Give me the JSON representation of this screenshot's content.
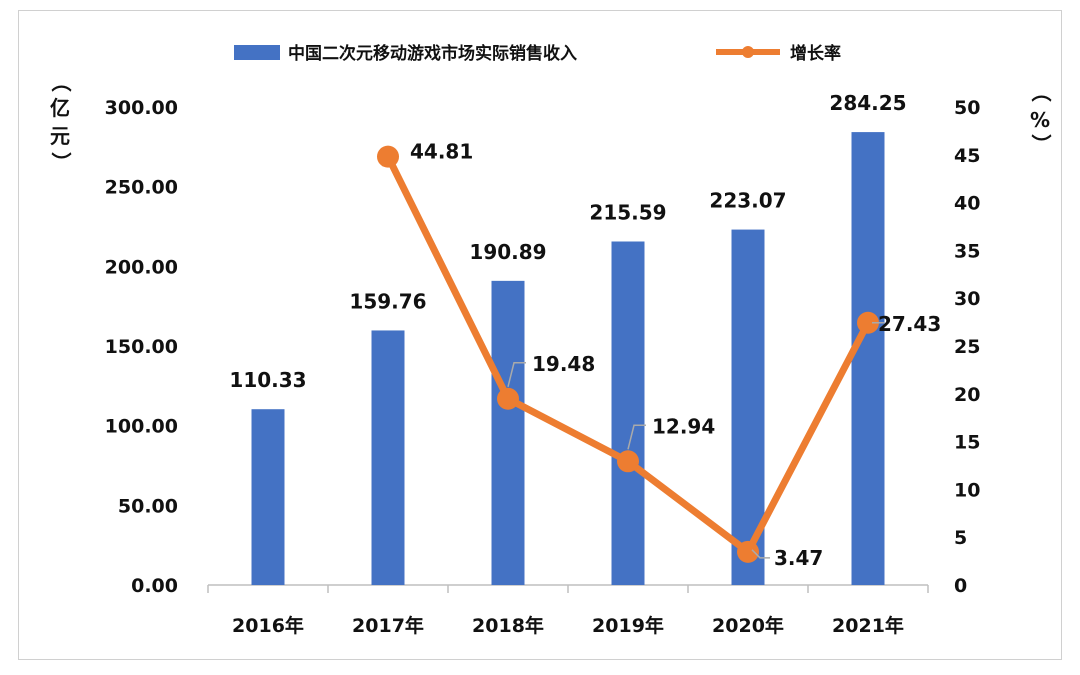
{
  "chart_data": {
    "type": "bar+line",
    "categories": [
      "2016年",
      "2017年",
      "2018年",
      "2019年",
      "2020年",
      "2021年"
    ],
    "series": [
      {
        "name": "中国二次元移动游戏市场实际销售收入",
        "type": "bar",
        "axis": "left",
        "color": "#4472C4",
        "values": [
          110.33,
          159.76,
          190.89,
          215.59,
          223.07,
          284.25
        ],
        "labels": [
          "110.33",
          "159.76",
          "190.89",
          "215.59",
          "223.07",
          "284.25"
        ]
      },
      {
        "name": "增长率",
        "type": "line",
        "axis": "right",
        "color": "#ED7D31",
        "values": [
          null,
          44.81,
          19.48,
          12.94,
          3.47,
          27.43
        ],
        "labels": [
          "",
          "44.81",
          "19.48",
          "12.94",
          "3.47",
          "27.43"
        ]
      }
    ],
    "y_left": {
      "label_chars": [
        "（",
        "亿",
        "元",
        "）"
      ],
      "ylim": [
        0,
        300
      ],
      "ticks": [
        "0.00",
        "50.00",
        "100.00",
        "150.00",
        "200.00",
        "250.00",
        "300.00"
      ]
    },
    "y_right": {
      "label_chars": [
        "（",
        "%",
        "）"
      ],
      "ylim": [
        0,
        50
      ],
      "ticks": [
        "0",
        "5",
        "10",
        "15",
        "20",
        "25",
        "30",
        "35",
        "40",
        "45",
        "50"
      ]
    },
    "legend_position": "top",
    "grid": false
  }
}
